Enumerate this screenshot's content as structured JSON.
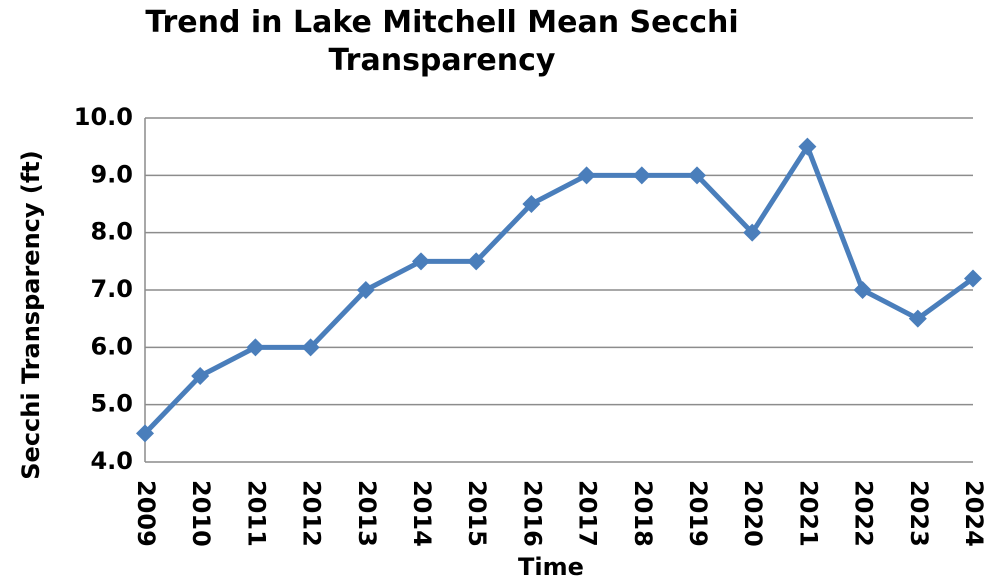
{
  "chart_data": {
    "type": "line",
    "title": "Trend in Lake Mitchell Mean Secchi Transparency",
    "x_label": "Time",
    "y_label": "Secchi Transparency (ft)",
    "categories": [
      "2009",
      "2010",
      "2011",
      "2012",
      "2013",
      "2014",
      "2015",
      "2016",
      "2017",
      "2018",
      "2019",
      "2020",
      "2021",
      "2022",
      "2023",
      "2024"
    ],
    "series": [
      {
        "name": "Mean Secchi Transparency",
        "color": "#4a7ebb",
        "values": [
          4.5,
          5.5,
          6.0,
          6.0,
          7.0,
          7.5,
          7.5,
          8.5,
          9.0,
          9.0,
          9.0,
          8.0,
          9.5,
          7.0,
          6.5,
          7.2
        ]
      }
    ],
    "ylim": [
      4,
      10
    ],
    "yticks": [
      {
        "value": 4,
        "label": "4.0"
      },
      {
        "value": 5,
        "label": "5.0"
      },
      {
        "value": 6,
        "label": "6.0"
      },
      {
        "value": 7,
        "label": "7.0"
      },
      {
        "value": 8,
        "label": "8.0"
      },
      {
        "value": 9,
        "label": "9.0"
      },
      {
        "value": 10,
        "label": "10.0"
      }
    ],
    "grid": true
  }
}
